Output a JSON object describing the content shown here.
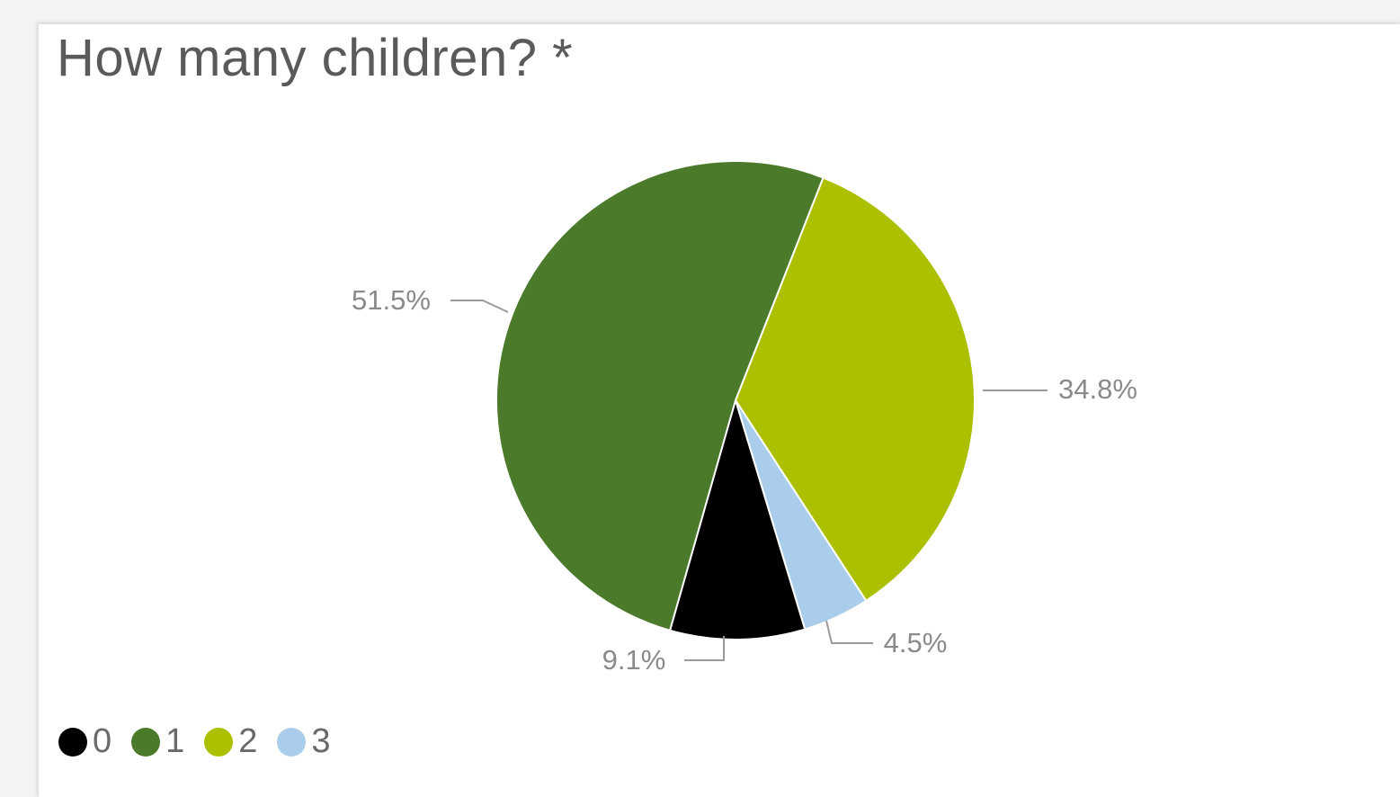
{
  "question": {
    "title": "How many children? *"
  },
  "chart_data": {
    "type": "pie",
    "title": "How many children? *",
    "categories": [
      "0",
      "1",
      "2",
      "3"
    ],
    "values": [
      9.1,
      51.5,
      34.8,
      4.5
    ],
    "labels": [
      "9.1%",
      "51.5%",
      "34.8%",
      "4.5%"
    ],
    "colors": [
      "#000000",
      "#4a7a2a",
      "#acc000",
      "#a9cdea"
    ],
    "legend_position": "bottom-left"
  }
}
